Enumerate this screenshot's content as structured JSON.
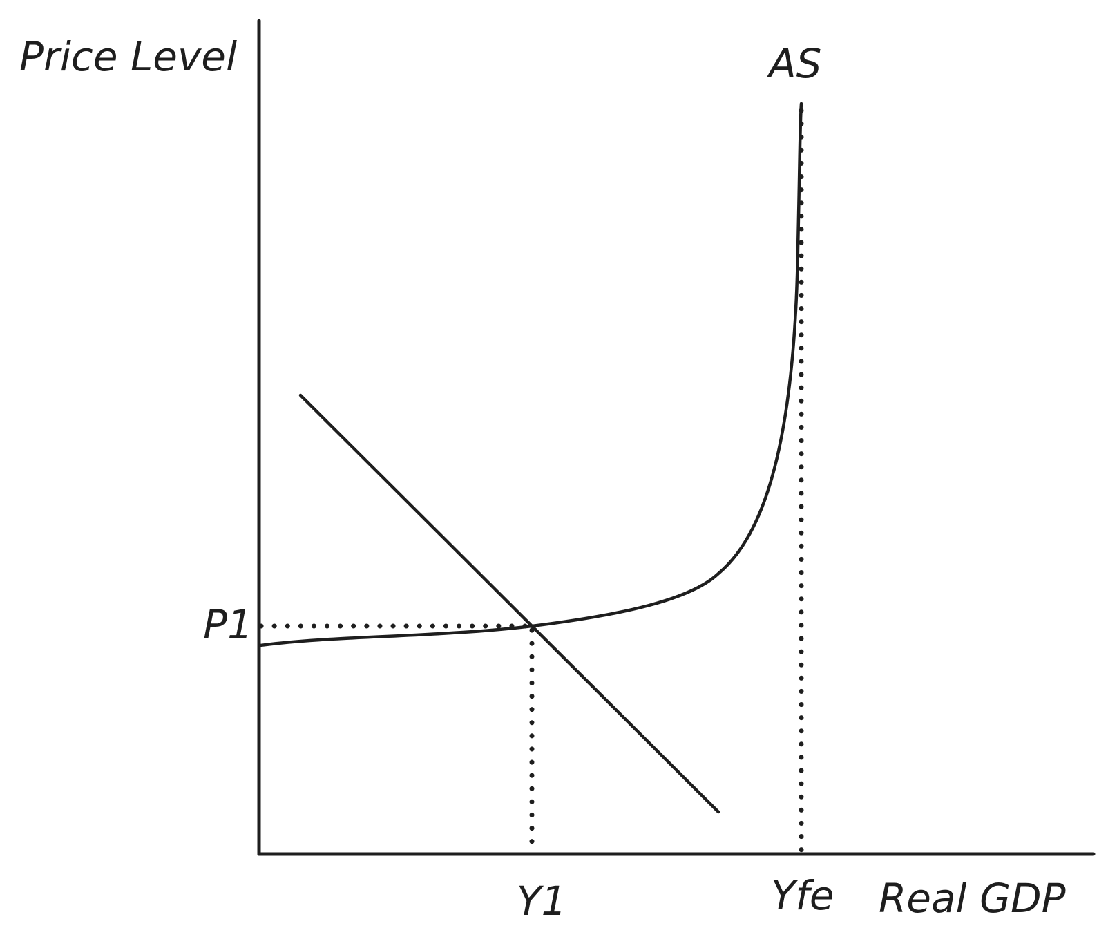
{
  "labels": {
    "y_axis": "Price Level",
    "x_axis": "Real GDP",
    "supply_curve": "AS",
    "price_level": "P1",
    "output_level": "Y1",
    "full_employment_output": "Yfe"
  },
  "colors": {
    "ink": "#1e1e1e",
    "background": "#ffffff"
  }
}
